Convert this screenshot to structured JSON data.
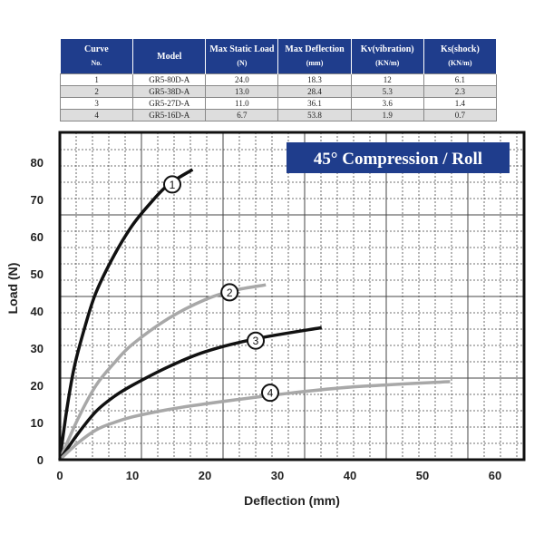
{
  "table": {
    "headers": [
      [
        "Curve",
        "No."
      ],
      [
        "Model",
        ""
      ],
      [
        "Max Static Load",
        "(N)"
      ],
      [
        "Max Deflection",
        "(mm)"
      ],
      [
        "Kv(vibration)",
        "(KN/m)"
      ],
      [
        "Ks(shock)",
        "(KN/m)"
      ]
    ],
    "rows": [
      [
        "1",
        "GR5-80D-A",
        "24.0",
        "18.3",
        "12",
        "6.1"
      ],
      [
        "2",
        "GR5-38D-A",
        "13.0",
        "28.4",
        "5.3",
        "2.3"
      ],
      [
        "3",
        "GR5-27D-A",
        "11.0",
        "36.1",
        "3.6",
        "1.4"
      ],
      [
        "4",
        "GR5-16D-A",
        "6.7",
        "53.8",
        "1.9",
        "0.7"
      ]
    ],
    "header_color": "#1f3d8c"
  },
  "chart_data": {
    "type": "line",
    "title": "45° Compression / Roll",
    "xlabel": "Deflection (mm)",
    "ylabel": "Load (N)",
    "xlim": [
      0,
      64
    ],
    "ylim": [
      0,
      88
    ],
    "xticks": [
      0,
      10,
      20,
      30,
      40,
      50,
      60
    ],
    "yticks": [
      0,
      10,
      20,
      30,
      40,
      50,
      60,
      70,
      80
    ],
    "grid": true,
    "series": [
      {
        "name": "1",
        "color": "#111111",
        "x": [
          0,
          1,
          2,
          3.5,
          5,
          7.5,
          10,
          12.5,
          15,
          18.3
        ],
        "y": [
          0,
          14,
          25,
          36,
          45,
          55,
          63,
          69,
          74,
          78
        ],
        "label_at": [
          15.5,
          74
        ]
      },
      {
        "name": "2",
        "color": "#a8a8a8",
        "x": [
          0,
          2.5,
          5,
          7.5,
          10,
          15,
          20,
          24,
          28.4
        ],
        "y": [
          0,
          11,
          20,
          26,
          31,
          38,
          43,
          45.5,
          47
        ],
        "label_at": [
          23.4,
          45
        ]
      },
      {
        "name": "3",
        "color": "#111111",
        "x": [
          0,
          2.5,
          5,
          7.5,
          10,
          15,
          20,
          27,
          36.1
        ],
        "y": [
          0,
          7,
          13,
          17,
          20,
          25,
          29,
          32.5,
          35.5
        ],
        "label_at": [
          27,
          32
        ]
      },
      {
        "name": "4",
        "color": "#a8a8a8",
        "x": [
          0,
          2.5,
          5,
          7.5,
          10,
          15,
          20,
          30,
          40,
          53.8
        ],
        "y": [
          0,
          4.5,
          8,
          10,
          11.5,
          13.5,
          15,
          17.5,
          19.5,
          21
        ],
        "label_at": [
          29,
          18
        ]
      }
    ]
  }
}
